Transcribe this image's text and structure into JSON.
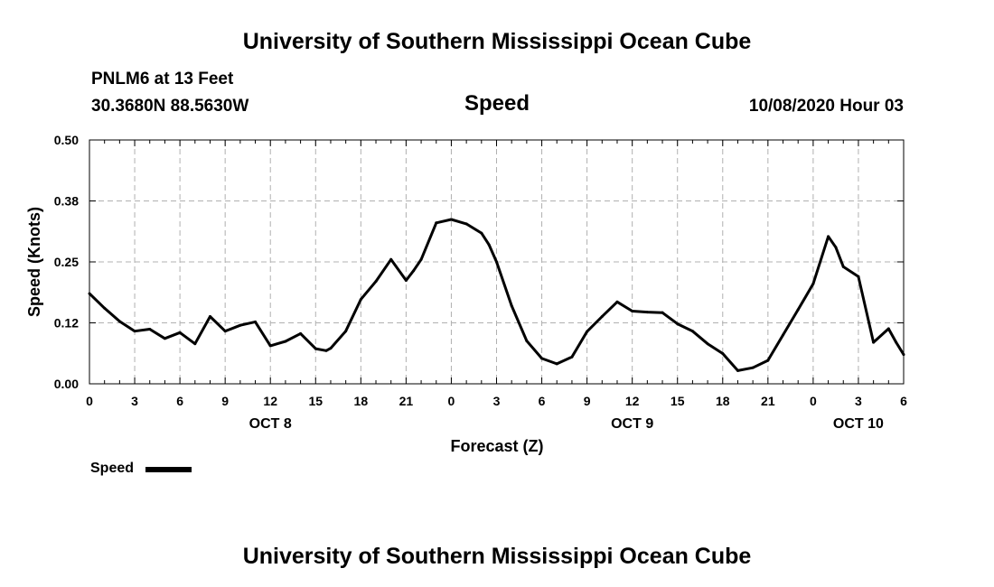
{
  "header": {
    "title": "University of Southern Mississippi Ocean Cube",
    "station": "PNLM6 at 13 Feet",
    "location": "30.3680N 88.5630W",
    "variable": "Speed",
    "datetime": "10/08/2020 Hour 03"
  },
  "footer": {
    "title": "University of Southern Mississippi Ocean Cube"
  },
  "legend": {
    "label": "Speed"
  },
  "colors": {
    "line": "#000000",
    "grid": "#b0b0b0"
  },
  "chart_data": {
    "type": "line",
    "title": "Speed",
    "xlabel": "Forecast (Z)",
    "ylabel": "Speed (Knots)",
    "ylim": [
      0,
      0.5
    ],
    "xlim": [
      0,
      54
    ],
    "y_ticks": [
      0,
      0.125,
      0.25,
      0.375,
      0.5
    ],
    "y_tick_labels": [
      "0.00",
      "0.12",
      "0.25",
      "0.38",
      "0.50"
    ],
    "x_ticks": [
      0,
      3,
      6,
      9,
      12,
      15,
      18,
      21,
      24,
      27,
      30,
      33,
      36,
      39,
      42,
      45,
      48,
      51,
      54
    ],
    "x_tick_labels": [
      "0",
      "3",
      "6",
      "9",
      "12",
      "15",
      "18",
      "21",
      "0",
      "3",
      "6",
      "9",
      "12",
      "15",
      "18",
      "21",
      "0",
      "3",
      "6"
    ],
    "day_labels": [
      {
        "x": 12,
        "label": "OCT 8"
      },
      {
        "x": 36,
        "label": "OCT 9"
      },
      {
        "x": 51,
        "label": "OCT 10"
      }
    ],
    "grid": true,
    "legend": "bottom-left",
    "series": [
      {
        "name": "Speed",
        "x": [
          0,
          1,
          2,
          3,
          4,
          5,
          6,
          7,
          8,
          9,
          10,
          11,
          12,
          13,
          14,
          15,
          15.7,
          16,
          17,
          18,
          19,
          20,
          21,
          21.5,
          22,
          23,
          24,
          25,
          26,
          26.5,
          27,
          28,
          29,
          30,
          31,
          32,
          33,
          34,
          35,
          36,
          37,
          38,
          39,
          40,
          41,
          42,
          43,
          44,
          45,
          46,
          47,
          48,
          49,
          49.5,
          50,
          51,
          52,
          53,
          53.5,
          54
        ],
        "values": [
          0.185,
          0.155,
          0.128,
          0.108,
          0.112,
          0.093,
          0.105,
          0.082,
          0.138,
          0.108,
          0.12,
          0.127,
          0.078,
          0.087,
          0.103,
          0.072,
          0.068,
          0.073,
          0.108,
          0.173,
          0.21,
          0.255,
          0.212,
          0.232,
          0.255,
          0.33,
          0.337,
          0.328,
          0.309,
          0.285,
          0.25,
          0.16,
          0.088,
          0.052,
          0.041,
          0.055,
          0.107,
          0.138,
          0.168,
          0.149,
          0.147,
          0.146,
          0.123,
          0.108,
          0.082,
          0.062,
          0.027,
          0.033,
          0.048,
          0.1,
          0.152,
          0.205,
          0.302,
          0.28,
          0.24,
          0.22,
          0.085,
          0.113,
          0.085,
          0.06
        ]
      }
    ]
  }
}
